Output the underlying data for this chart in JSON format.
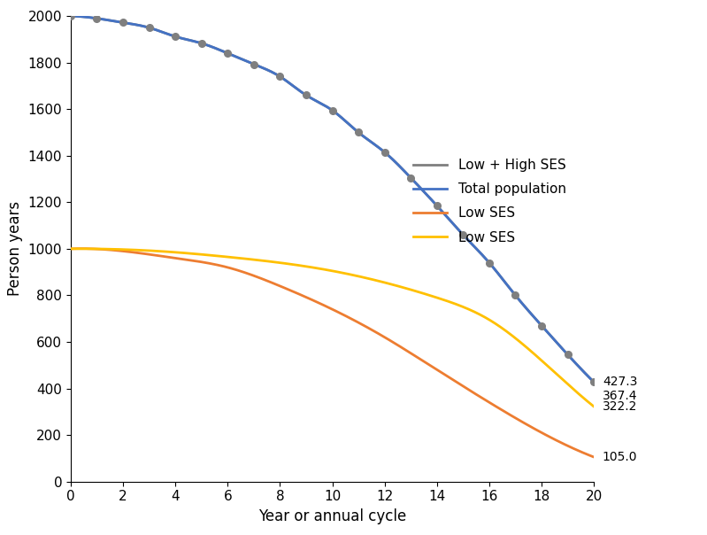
{
  "title": "",
  "xlabel": "Year or annual cycle",
  "ylabel": "Person years",
  "xlim": [
    0,
    20
  ],
  "ylim": [
    0,
    2000
  ],
  "xticks": [
    0,
    2,
    4,
    6,
    8,
    10,
    12,
    14,
    16,
    18,
    20
  ],
  "yticks": [
    0,
    200,
    400,
    600,
    800,
    1000,
    1200,
    1400,
    1600,
    1800,
    2000
  ],
  "legend_labels": [
    "Total population",
    "Low SES",
    "Low SES",
    "Low + High SES"
  ],
  "line_colors": [
    "#4472C4",
    "#ED7D31",
    "#FFC000",
    "#7F7F7F"
  ],
  "annotations": [
    "427.3",
    "367.4",
    "322.2",
    "105.0"
  ],
  "figsize": [
    7.99,
    6.04
  ],
  "dpi": 100,
  "gray_points_x": [
    0,
    1,
    2,
    3,
    4,
    5,
    6,
    7,
    8,
    9,
    10,
    11,
    12,
    13,
    14,
    15,
    16,
    17,
    18,
    19,
    20
  ],
  "gray_points_y": [
    2000,
    1990,
    1972,
    1950,
    1912,
    1883,
    1840,
    1793,
    1740,
    1660,
    1595,
    1500,
    1415,
    1305,
    1185,
    1060,
    940,
    800,
    670,
    545,
    427
  ]
}
